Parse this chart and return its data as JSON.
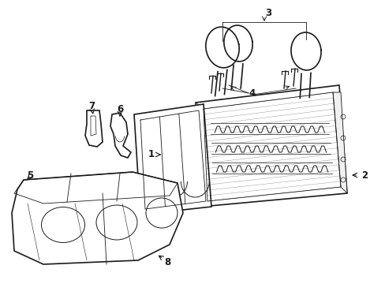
{
  "bg_color": "#ffffff",
  "line_color": "#1a1a1a",
  "lw_main": 1.2,
  "lw_thin": 0.6,
  "lw_detail": 0.4,
  "figsize": [
    4.89,
    3.6
  ],
  "dpi": 100,
  "label_fontsize": 8.5,
  "label_fontweight": "bold"
}
